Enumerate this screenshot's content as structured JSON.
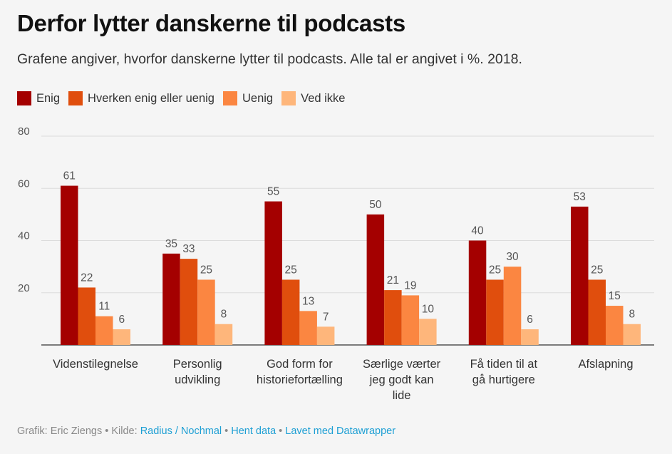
{
  "title": "Derfor lytter danskerne til podcasts",
  "subtitle": "Grafene angiver, hvorfor danskerne lytter til podcasts. Alle tal er angivet i %. 2018.",
  "footer": {
    "prefix": "Grafik: Eric Ziengs • Kilde: ",
    "source_link": "Radius / Nochmal",
    "sep1": " • ",
    "data_link": "Hent data",
    "sep2": " • ",
    "made_link": "Lavet med Datawrapper"
  },
  "colors": {
    "Enig": "#a40000",
    "Hverken enig eller uenig": "#e04e0d",
    "Uenig": "#fb8641",
    "Ved ikke": "#feb67b",
    "link": "#1d9fd4"
  },
  "chart_data": {
    "type": "bar",
    "title": "Derfor lytter danskerne til podcasts",
    "categories": [
      [
        "Videnstilegnelse"
      ],
      [
        "Personlig",
        "udvikling"
      ],
      [
        "God form for",
        "historiefortælling"
      ],
      [
        "Særlige værter",
        "jeg godt kan",
        "lide"
      ],
      [
        "Få tiden til at",
        "gå hurtigere"
      ],
      [
        "Afslapning"
      ]
    ],
    "series": [
      {
        "name": "Enig",
        "color": "#a40000",
        "values": [
          61,
          35,
          55,
          50,
          40,
          53
        ]
      },
      {
        "name": "Hverken enig eller uenig",
        "color": "#e04e0d",
        "values": [
          22,
          33,
          25,
          21,
          25,
          25
        ]
      },
      {
        "name": "Uenig",
        "color": "#fb8641",
        "values": [
          11,
          25,
          13,
          19,
          30,
          15
        ]
      },
      {
        "name": "Ved ikke",
        "color": "#feb67b",
        "values": [
          6,
          8,
          7,
          10,
          6,
          8
        ]
      }
    ],
    "ylim": [
      0,
      80
    ],
    "yticks": [
      20,
      40,
      60,
      80
    ],
    "grid": true,
    "legend": "top-left",
    "xlabel": "",
    "ylabel": ""
  }
}
